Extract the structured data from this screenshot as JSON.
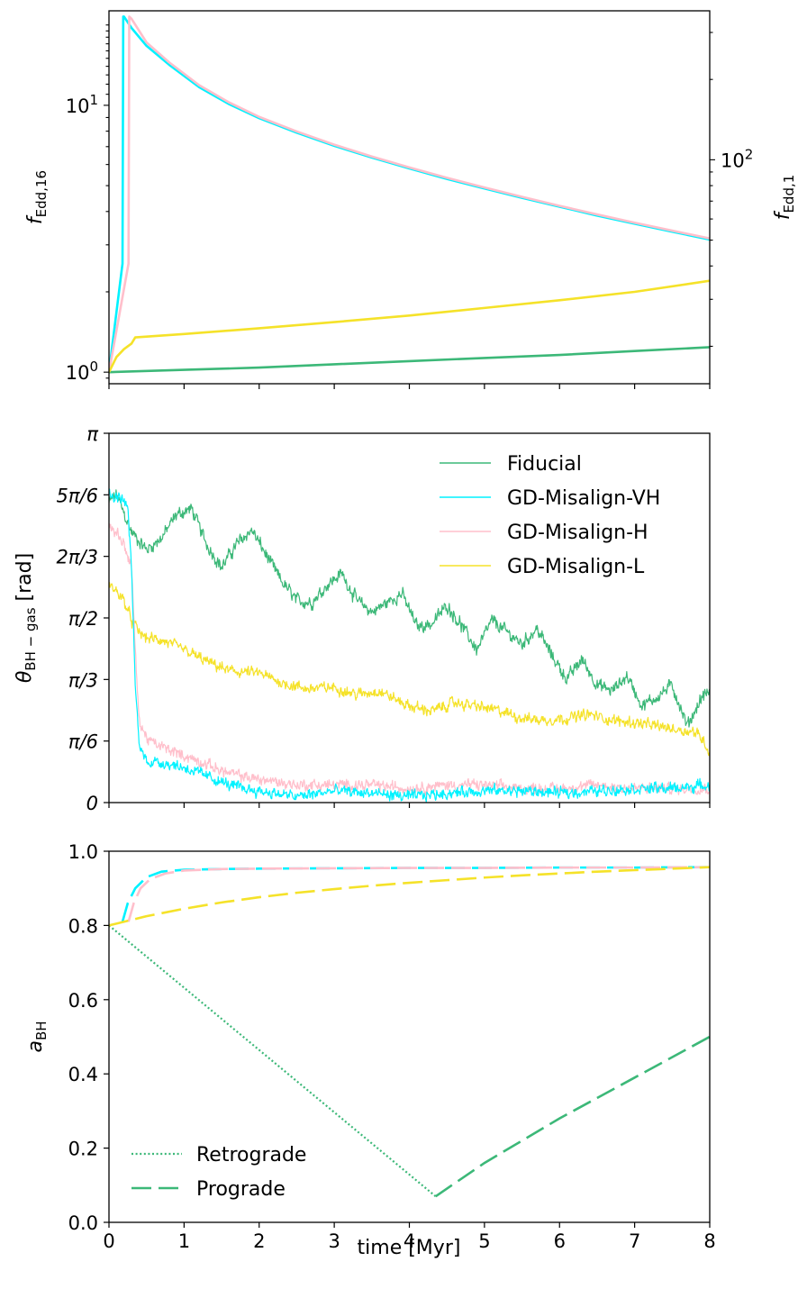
{
  "colors": {
    "fiducial": "#3cb878",
    "vh": "#00f2ff",
    "h": "#ffbfcb",
    "l": "#f5e229"
  },
  "chart_data": [
    {
      "type": "line",
      "yscale": "log",
      "ylabel": "f_{Edd,16}",
      "ylabel_right": "f_{Edd,1}",
      "xlim": [
        0,
        8
      ],
      "ylim": [
        0.905,
        22.6
      ],
      "yticks_left": [
        {
          "value": 1,
          "label": "10^0"
        },
        {
          "value": 10,
          "label": "10^1"
        }
      ],
      "yticks_right": [
        {
          "value": 100,
          "label": "10^2"
        }
      ],
      "right_axis_scale": 16,
      "series": [
        {
          "name": "Fiducial",
          "color_key": "fiducial",
          "x": [
            0,
            1,
            2,
            3,
            4,
            5,
            6,
            7,
            8
          ],
          "y": [
            1.0,
            1.02,
            1.04,
            1.07,
            1.1,
            1.13,
            1.16,
            1.2,
            1.24
          ]
        },
        {
          "name": "GD-Misalign-VH",
          "color_key": "vh",
          "x": [
            0,
            0.18,
            0.19,
            0.2,
            0.3,
            0.5,
            0.8,
            1.2,
            1.6,
            2,
            2.5,
            3,
            3.5,
            4,
            4.5,
            5,
            5.5,
            6,
            6.5,
            7,
            7.5,
            8
          ],
          "y": [
            1.0,
            2.55,
            21.5,
            21.5,
            19.5,
            16.7,
            14.2,
            11.7,
            10.1,
            8.95,
            7.9,
            7.05,
            6.37,
            5.8,
            5.3,
            4.88,
            4.5,
            4.17,
            3.86,
            3.6,
            3.36,
            3.14
          ]
        },
        {
          "name": "GD-Misalign-H",
          "color_key": "h",
          "x": [
            0,
            0.26,
            0.27,
            0.3,
            0.5,
            0.8,
            1.2,
            1.6,
            2,
            2.5,
            3,
            3.5,
            4,
            4.5,
            5,
            5.5,
            6,
            6.5,
            7,
            7.5,
            8
          ],
          "y": [
            1.0,
            2.55,
            21.5,
            21.1,
            17.2,
            14.5,
            11.9,
            10.25,
            9.05,
            7.98,
            7.12,
            6.43,
            5.85,
            5.35,
            4.92,
            4.54,
            4.2,
            3.9,
            3.63,
            3.39,
            3.17
          ]
        },
        {
          "name": "GD-Misalign-L",
          "color_key": "l",
          "x": [
            0,
            0.1,
            0.2,
            0.3,
            0.35,
            1,
            2,
            3,
            4,
            5,
            6,
            7,
            8
          ],
          "y": [
            1.0,
            1.14,
            1.22,
            1.28,
            1.35,
            1.39,
            1.46,
            1.54,
            1.63,
            1.74,
            1.86,
            2.0,
            2.2
          ]
        }
      ]
    },
    {
      "type": "line",
      "ylabel": "θ_{BH−gas} [rad]",
      "xlim": [
        0,
        8
      ],
      "ylim": [
        0,
        3.1416
      ],
      "yticks": [
        {
          "value": 0,
          "label": "0"
        },
        {
          "value": 0.5236,
          "label": "π/6"
        },
        {
          "value": 1.0472,
          "label": "π/3"
        },
        {
          "value": 1.5708,
          "label": "π/2"
        },
        {
          "value": 2.0944,
          "label": "2π/3"
        },
        {
          "value": 2.618,
          "label": "5π/6"
        },
        {
          "value": 3.1416,
          "label": "π"
        }
      ],
      "legend": {
        "placement": "top-right",
        "entries": [
          "Fiducial",
          "GD-Misalign-VH",
          "GD-Misalign-H",
          "GD-Misalign-L"
        ]
      },
      "series": [
        {
          "name": "Fiducial",
          "color_key": "fiducial",
          "x": [
            0,
            0.1,
            0.3,
            0.5,
            0.7,
            0.9,
            1.1,
            1.3,
            1.5,
            1.7,
            1.9,
            2.1,
            2.3,
            2.5,
            2.7,
            2.9,
            3.1,
            3.3,
            3.5,
            3.7,
            3.9,
            4.1,
            4.3,
            4.5,
            4.7,
            4.9,
            5.1,
            5.3,
            5.5,
            5.7,
            5.9,
            6.1,
            6.3,
            6.5,
            6.7,
            6.9,
            7.1,
            7.3,
            7.5,
            7.7,
            7.9,
            8.0
          ],
          "y": [
            2.55,
            2.62,
            2.3,
            2.15,
            2.25,
            2.45,
            2.5,
            2.2,
            2.0,
            2.2,
            2.32,
            2.1,
            1.88,
            1.72,
            1.7,
            1.85,
            1.95,
            1.72,
            1.62,
            1.7,
            1.78,
            1.5,
            1.52,
            1.68,
            1.5,
            1.3,
            1.55,
            1.45,
            1.35,
            1.48,
            1.25,
            1.05,
            1.22,
            1.0,
            0.95,
            1.08,
            0.82,
            0.9,
            1.0,
            0.65,
            0.9,
            0.95
          ]
        },
        {
          "name": "GD-Misalign-VH",
          "color_key": "vh",
          "x": [
            0,
            0.1,
            0.2,
            0.25,
            0.3,
            0.35,
            0.4,
            0.5,
            0.6,
            0.8,
            1.0,
            1.2,
            1.4,
            1.6,
            1.8,
            2.0,
            2.5,
            3.0,
            3.5,
            4.0,
            4.5,
            5.0,
            5.5,
            6.0,
            6.5,
            7.0,
            7.5,
            8.0
          ],
          "y": [
            2.62,
            2.6,
            2.58,
            2.5,
            2.0,
            1.0,
            0.5,
            0.35,
            0.35,
            0.33,
            0.3,
            0.25,
            0.2,
            0.15,
            0.12,
            0.1,
            0.05,
            0.1,
            0.08,
            0.05,
            0.08,
            0.1,
            0.1,
            0.08,
            0.1,
            0.12,
            0.12,
            0.15
          ]
        },
        {
          "name": "GD-Misalign-H",
          "color_key": "h",
          "x": [
            0,
            0.1,
            0.2,
            0.3,
            0.35,
            0.4,
            0.5,
            0.6,
            0.8,
            1.0,
            1.2,
            1.4,
            1.6,
            1.8,
            2.0,
            2.5,
            3.0,
            3.5,
            4.0,
            4.5,
            5.0,
            5.5,
            6.0,
            6.5,
            7.0,
            7.5,
            8.0
          ],
          "y": [
            2.35,
            2.3,
            2.2,
            2.0,
            1.3,
            0.7,
            0.55,
            0.5,
            0.45,
            0.4,
            0.35,
            0.3,
            0.25,
            0.22,
            0.2,
            0.15,
            0.15,
            0.15,
            0.12,
            0.15,
            0.15,
            0.12,
            0.12,
            0.15,
            0.12,
            0.12,
            0.12
          ]
        },
        {
          "name": "GD-Misalign-L",
          "color_key": "l",
          "x": [
            0,
            0.1,
            0.2,
            0.3,
            0.4,
            0.5,
            0.7,
            1.0,
            1.3,
            1.6,
            2.0,
            2.3,
            2.6,
            3.0,
            3.3,
            3.6,
            4.0,
            4.3,
            4.6,
            4.9,
            5.2,
            5.5,
            5.8,
            6.1,
            6.4,
            6.7,
            7.0,
            7.3,
            7.6,
            7.8,
            7.9,
            8.0
          ],
          "y": [
            1.85,
            1.8,
            1.72,
            1.55,
            1.45,
            1.4,
            1.38,
            1.3,
            1.2,
            1.12,
            1.1,
            1.02,
            0.97,
            0.98,
            0.92,
            0.95,
            0.82,
            0.78,
            0.85,
            0.82,
            0.78,
            0.72,
            0.7,
            0.72,
            0.75,
            0.7,
            0.68,
            0.65,
            0.62,
            0.6,
            0.55,
            0.42
          ]
        }
      ]
    },
    {
      "type": "line",
      "ylabel": "a_{BH}",
      "xlabel": "time [Myr]",
      "xlim": [
        0,
        8
      ],
      "ylim": [
        0,
        1.0
      ],
      "xticks": [
        0,
        1,
        2,
        3,
        4,
        5,
        6,
        7,
        8
      ],
      "yticks": [
        0.0,
        0.2,
        0.4,
        0.6,
        0.8,
        1.0
      ],
      "ytick_labels": [
        "0.0",
        "0.2",
        "0.4",
        "0.6",
        "0.8",
        "1.0"
      ],
      "legend": {
        "placement": "bottom-left",
        "entries": [
          "Retrograde",
          "Prograde"
        ],
        "styles": [
          "dotted",
          "dashed"
        ]
      },
      "series": [
        {
          "name": "Fiducial (retrograde)",
          "color_key": "fiducial",
          "style": "dotted",
          "x": [
            0,
            4.35
          ],
          "y": [
            0.8,
            0.07
          ]
        },
        {
          "name": "Fiducial (prograde)",
          "color_key": "fiducial",
          "style": "dashed",
          "x": [
            4.35,
            5,
            6,
            7,
            8
          ],
          "y": [
            0.07,
            0.16,
            0.28,
            0.39,
            0.5
          ]
        },
        {
          "name": "GD-Misalign-VH",
          "color_key": "vh",
          "style": "dashed",
          "x": [
            0.18,
            0.25,
            0.35,
            0.5,
            0.7,
            1.0,
            1.5,
            2.0,
            3.0,
            4.0,
            5.0,
            6.0,
            7.0,
            8.0
          ],
          "y": [
            0.81,
            0.86,
            0.9,
            0.93,
            0.945,
            0.95,
            0.952,
            0.953,
            0.954,
            0.955,
            0.955,
            0.956,
            0.956,
            0.957
          ]
        },
        {
          "name": "GD-Misalign-H",
          "color_key": "h",
          "style": "dashed",
          "x": [
            0.26,
            0.33,
            0.42,
            0.55,
            0.75,
            1.0,
            1.5,
            2.0,
            3.0,
            4.0,
            5.0,
            6.0,
            7.0,
            8.0
          ],
          "y": [
            0.81,
            0.86,
            0.9,
            0.925,
            0.94,
            0.948,
            0.952,
            0.953,
            0.954,
            0.955,
            0.955,
            0.956,
            0.956,
            0.957
          ]
        },
        {
          "name": "GD-Misalign-L",
          "color_key": "l",
          "style": "dashed",
          "x": [
            0,
            0.5,
            1,
            1.5,
            2,
            2.5,
            3,
            3.5,
            4,
            4.5,
            5,
            5.5,
            6,
            6.5,
            7,
            7.5,
            8
          ],
          "y": [
            0.8,
            0.825,
            0.845,
            0.862,
            0.876,
            0.888,
            0.898,
            0.907,
            0.915,
            0.922,
            0.929,
            0.935,
            0.94,
            0.945,
            0.949,
            0.953,
            0.957
          ]
        }
      ]
    }
  ]
}
